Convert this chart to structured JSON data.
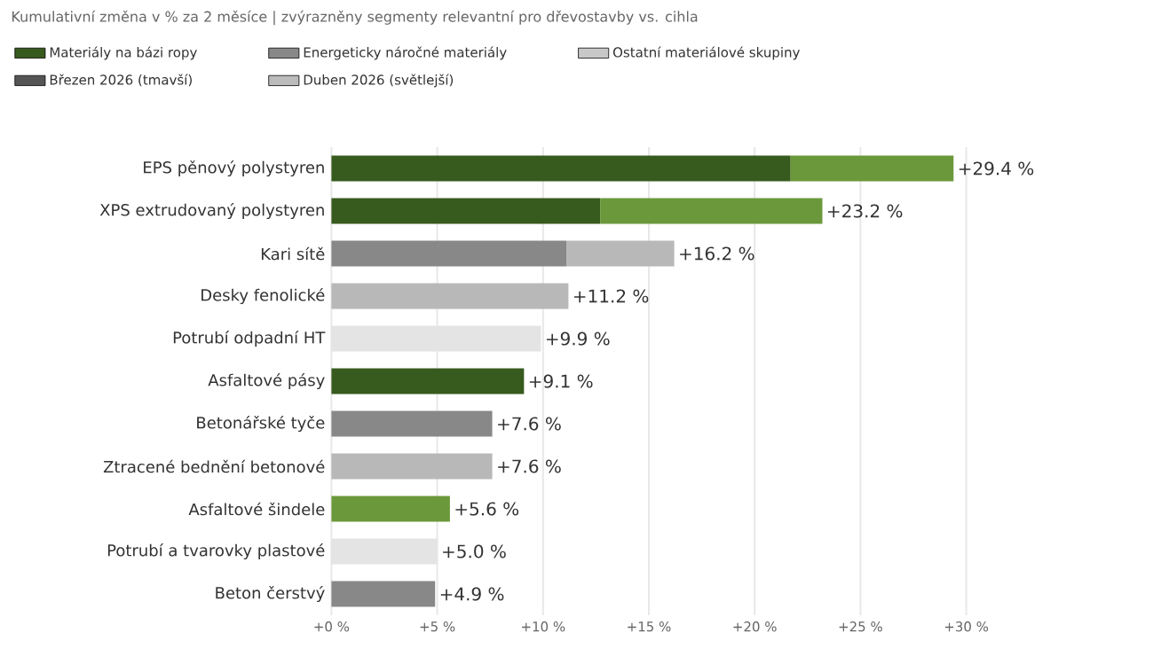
{
  "chart_data": {
    "type": "bar",
    "orientation": "horizontal",
    "stacked": true,
    "title": "Kumulativní změna v % za 2 měsíce | zvýrazněny segmenty relevantní pro dřevostavby vs. cihla",
    "categories": [
      "EPS pěnový polystyren",
      "XPS extrudovaný polystyren",
      "Kari sítě",
      "Desky fenolické",
      "Potrubí odpadní HT",
      "Asfaltové pásy",
      "Betonářské tyče",
      "Ztracené bednění betonové",
      "Asfaltové šindele",
      "Potrubí a tvarovky plastové",
      "Beton čerstvý"
    ],
    "series": [
      {
        "name": "Materiály na bázi ropy",
        "color": "#375a1e",
        "values": [
          21.7,
          12.7,
          null,
          null,
          null,
          9.1,
          null,
          null,
          5.6,
          null,
          null
        ],
        "colors": [
          "#375a1e",
          "#375a1e",
          null,
          null,
          null,
          "#375a1e",
          null,
          null,
          "#6b983b",
          null,
          null
        ]
      },
      {
        "name": "Energeticky náročné materiály",
        "color": "#888888",
        "values": [
          null,
          null,
          11.1,
          null,
          null,
          null,
          7.6,
          null,
          null,
          null,
          4.9
        ]
      },
      {
        "name": "Ostatní materiálové skupiny",
        "color": "#c8c8c8",
        "values": [
          null,
          null,
          null,
          11.2,
          9.9,
          null,
          null,
          7.6,
          null,
          5.0,
          null
        ],
        "colors": [
          null,
          null,
          null,
          "#b8b8b8",
          "#e4e4e4",
          null,
          null,
          "#b8b8b8",
          null,
          "#e4e4e4",
          null
        ]
      },
      {
        "name": "Březen 2026 (tmavší)",
        "color": "#555555",
        "values": [
          null,
          null,
          null,
          null,
          null,
          null,
          null,
          null,
          null,
          null,
          null
        ]
      },
      {
        "name": "Duben 2026 (světlejší)",
        "color": "#bbbbbb",
        "values": [
          7.7,
          10.5,
          5.1,
          null,
          null,
          null,
          null,
          null,
          null,
          null,
          null
        ],
        "colors": [
          "#6b983b",
          "#6b983b",
          "#b8b8b8",
          null,
          null,
          null,
          null,
          null,
          null,
          null,
          null
        ]
      }
    ],
    "totals": [
      "+29.4 %",
      "+23.2 %",
      "+16.2 %",
      "+11.2 %",
      "+9.9 %",
      "+9.1 %",
      "+7.6 %",
      "+7.6 %",
      "+5.6 %",
      "+5.0 %",
      "+4.9 %"
    ],
    "xlim": [
      0,
      30
    ],
    "xticks": [
      {
        "value": 0,
        "label": "+0 %"
      },
      {
        "value": 5,
        "label": "+5 %"
      },
      {
        "value": 10,
        "label": "+10 %"
      },
      {
        "value": 15,
        "label": "+15 %"
      },
      {
        "value": 20,
        "label": "+20 %"
      },
      {
        "value": 25,
        "label": "+25 %"
      },
      {
        "value": 30,
        "label": "+30 %"
      }
    ],
    "grid": "x",
    "legend": "top left"
  }
}
